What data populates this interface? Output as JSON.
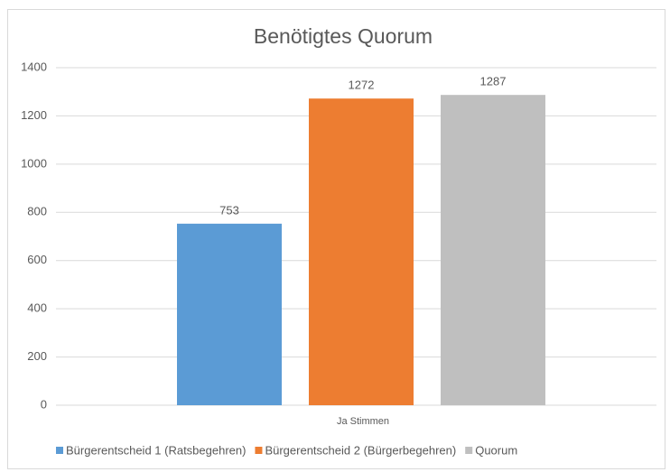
{
  "chart_data": {
    "type": "bar",
    "title": "Benötigtes Quorum",
    "categories": [
      "Ja Stimmen"
    ],
    "series": [
      {
        "name": "Bürgerentscheid 1 (Ratsbegehren)",
        "color": "#5b9bd5",
        "values": [
          753
        ]
      },
      {
        "name": "Bürgerentscheid 2 (Bürgerbegehren)",
        "color": "#ed7d31",
        "values": [
          1272
        ]
      },
      {
        "name": "Quorum",
        "color": "#bfbfbf",
        "values": [
          1287
        ]
      }
    ],
    "ylim": [
      0,
      1400
    ],
    "yticks": [
      0,
      200,
      400,
      600,
      800,
      1000,
      1200,
      1400
    ],
    "grid": true,
    "legend": "bottom",
    "data_labels": true
  }
}
